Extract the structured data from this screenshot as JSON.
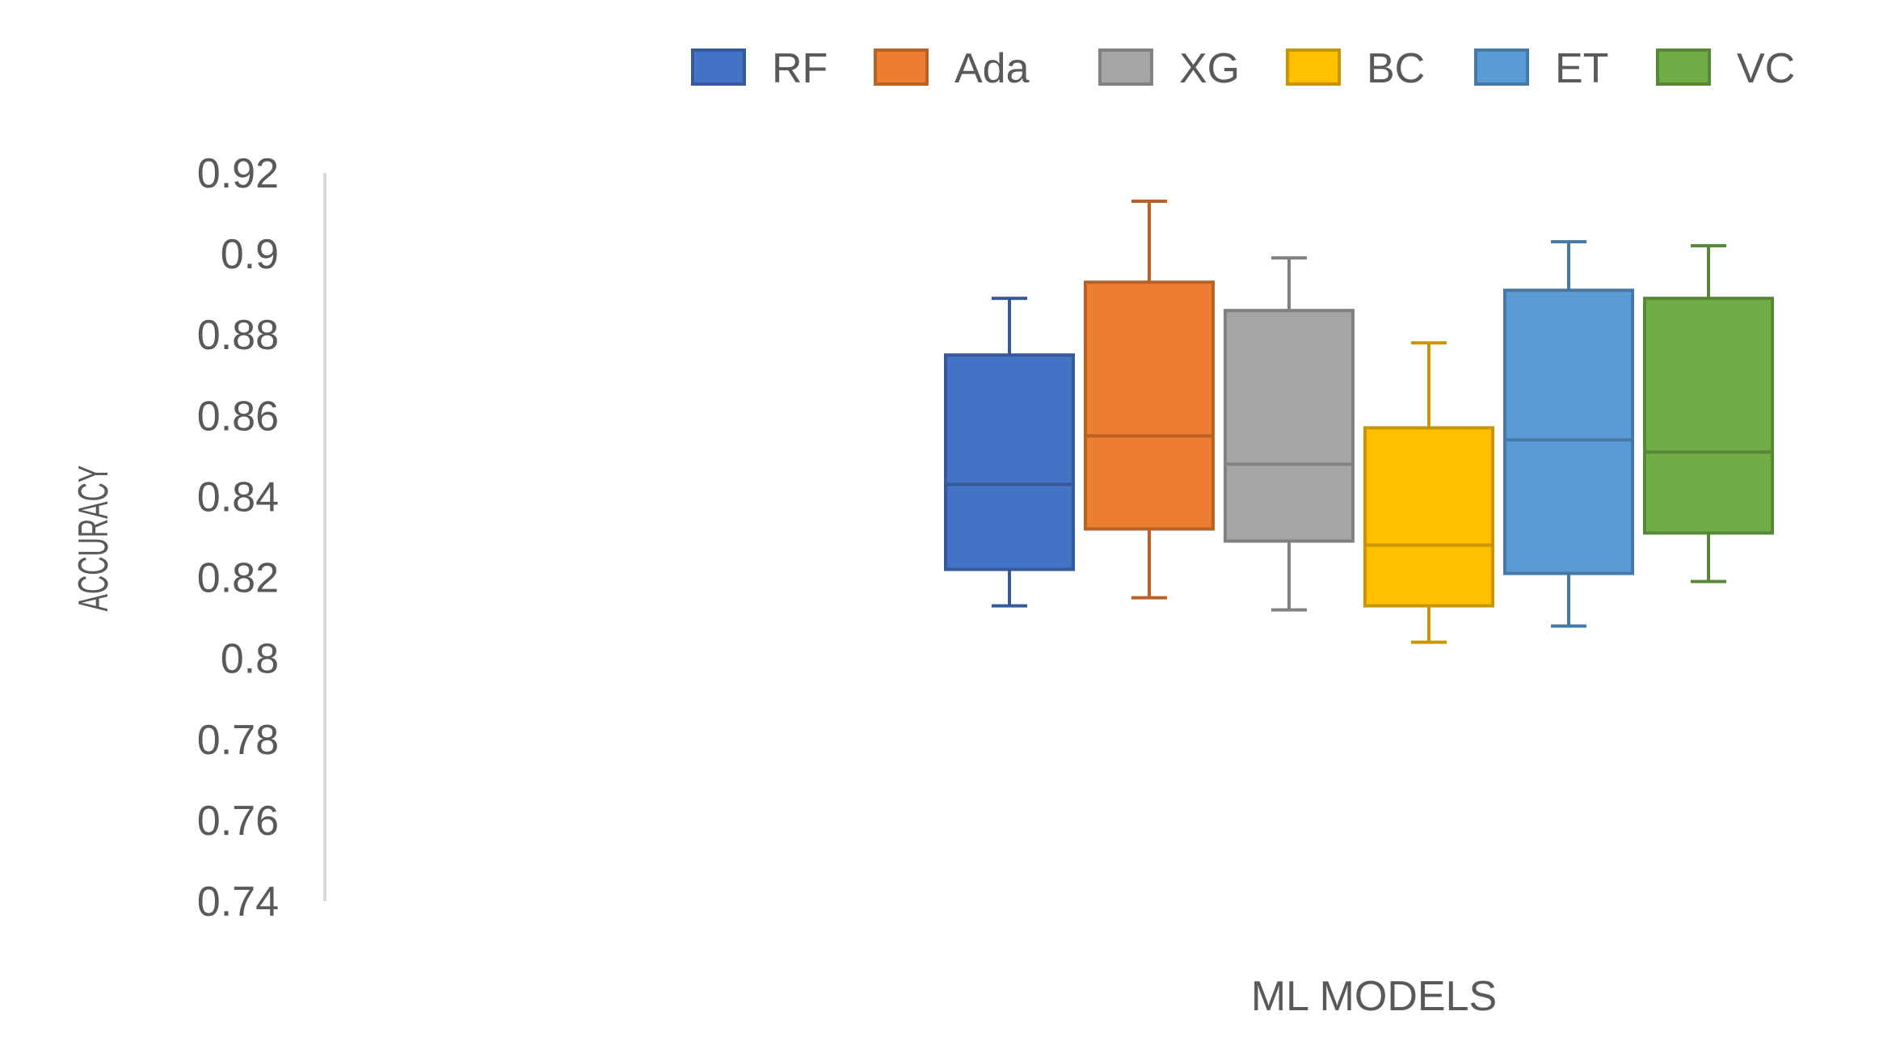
{
  "chart_data": {
    "type": "boxplot",
    "title": "",
    "xlabel": "ML MODELS",
    "ylabel": "ACCURACY",
    "ylim": [
      0.74,
      0.92
    ],
    "yticks": [
      "0.92",
      "0.9",
      "0.88",
      "0.86",
      "0.84",
      "0.82",
      "0.8",
      "0.78",
      "0.76",
      "0.74"
    ],
    "grid": false,
    "legend_position": "top-right",
    "series": [
      {
        "name": "RF",
        "color": "#4472C4",
        "whisker_low": 0.813,
        "q1": 0.822,
        "median": 0.843,
        "q3": 0.875,
        "whisker_high": 0.889
      },
      {
        "name": "Ada",
        "color": "#ED7D31",
        "whisker_low": 0.815,
        "q1": 0.832,
        "median": 0.855,
        "q3": 0.893,
        "whisker_high": 0.913
      },
      {
        "name": "XG",
        "color": "#A5A5A5",
        "whisker_low": 0.812,
        "q1": 0.829,
        "median": 0.848,
        "q3": 0.886,
        "whisker_high": 0.899
      },
      {
        "name": "BC",
        "color": "#FFC000",
        "whisker_low": 0.804,
        "q1": 0.813,
        "median": 0.828,
        "q3": 0.857,
        "whisker_high": 0.878
      },
      {
        "name": "ET",
        "color": "#5B9BD5",
        "whisker_low": 0.808,
        "q1": 0.821,
        "median": 0.854,
        "q3": 0.891,
        "whisker_high": 0.903
      },
      {
        "name": "VC",
        "color": "#70AD47",
        "whisker_low": 0.819,
        "q1": 0.831,
        "median": 0.851,
        "q3": 0.889,
        "whisker_high": 0.902
      }
    ]
  }
}
